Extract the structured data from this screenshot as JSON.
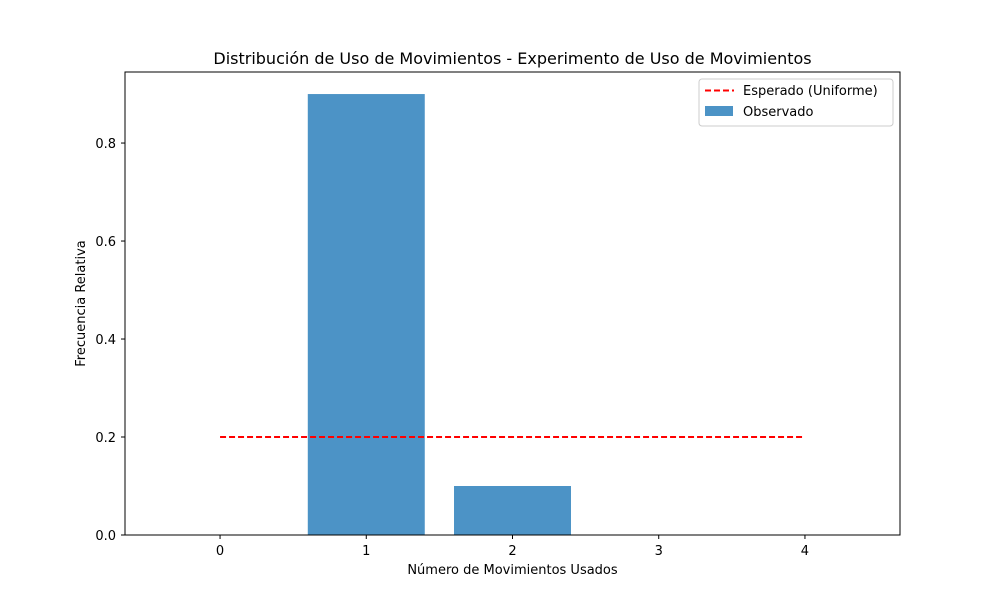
{
  "chart_data": {
    "type": "bar",
    "title": "Distribución de Uso de Movimientos - Experimento de Uso de Movimientos",
    "xlabel": "Número de Movimientos Usados",
    "ylabel": "Frecuencia Relativa",
    "categories": [
      0,
      1,
      2,
      3,
      4
    ],
    "xlim": [
      -0.65,
      4.65
    ],
    "ylim": [
      0,
      0.945
    ],
    "xticks": [
      "0",
      "1",
      "2",
      "3",
      "4"
    ],
    "yticks": [
      "0.0",
      "0.2",
      "0.4",
      "0.6",
      "0.8"
    ],
    "ytick_values": [
      0.0,
      0.2,
      0.4,
      0.6,
      0.8
    ],
    "grid": false,
    "legend_position": "top-right",
    "series": [
      {
        "name": "Observado",
        "kind": "bar",
        "color": "#4c93c6",
        "x": [
          0,
          1,
          2,
          3,
          4
        ],
        "values": [
          0.0,
          0.9,
          0.1,
          0.0,
          0.0
        ]
      },
      {
        "name": "Esperado (Uniforme)",
        "kind": "line",
        "style": "dashed",
        "color": "#ff0000",
        "x": [
          0,
          4
        ],
        "values": [
          0.2,
          0.2
        ]
      }
    ]
  }
}
